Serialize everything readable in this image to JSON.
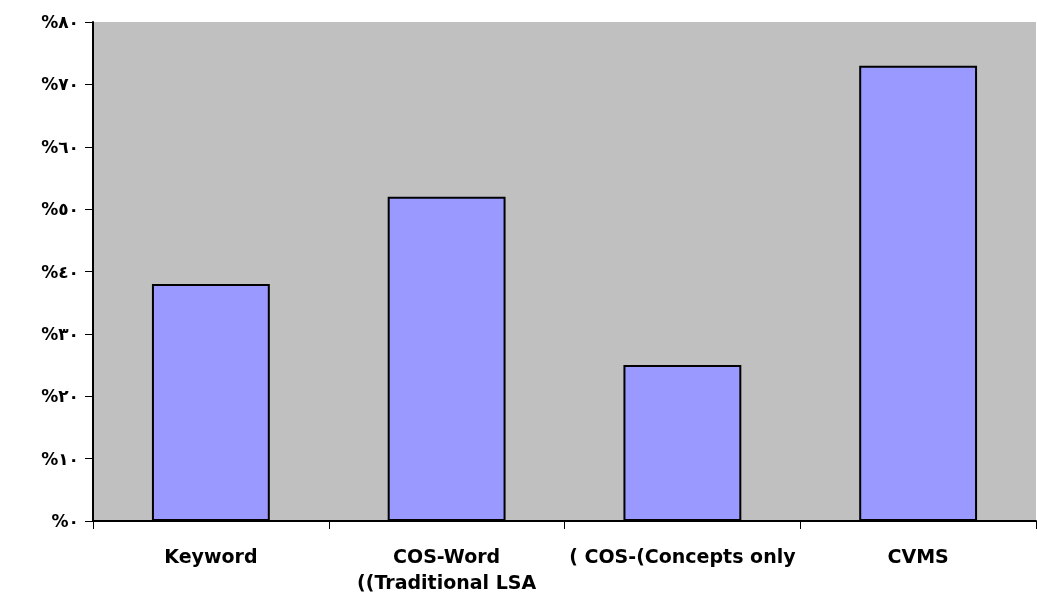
{
  "chart_data": {
    "type": "bar",
    "categories": [
      "Keyword",
      "COS-Word\n((Traditional LSA",
      "( COS-(Concepts only",
      "CVMS"
    ],
    "values": [
      38,
      52,
      25,
      73
    ],
    "color": "#9999ff",
    "ylim": [
      0,
      80
    ],
    "yticks": [
      {
        "value": 0,
        "label": "%٠"
      },
      {
        "value": 10,
        "label": "%١٠"
      },
      {
        "value": 20,
        "label": "%٢٠"
      },
      {
        "value": 30,
        "label": "%٣٠"
      },
      {
        "value": 40,
        "label": "%٤٠"
      },
      {
        "value": 50,
        "label": "%٥٠"
      },
      {
        "value": 60,
        "label": "%٦٠"
      },
      {
        "value": 70,
        "label": "%٧٠"
      },
      {
        "value": 80,
        "label": "%٨٠"
      }
    ],
    "grid": false
  }
}
